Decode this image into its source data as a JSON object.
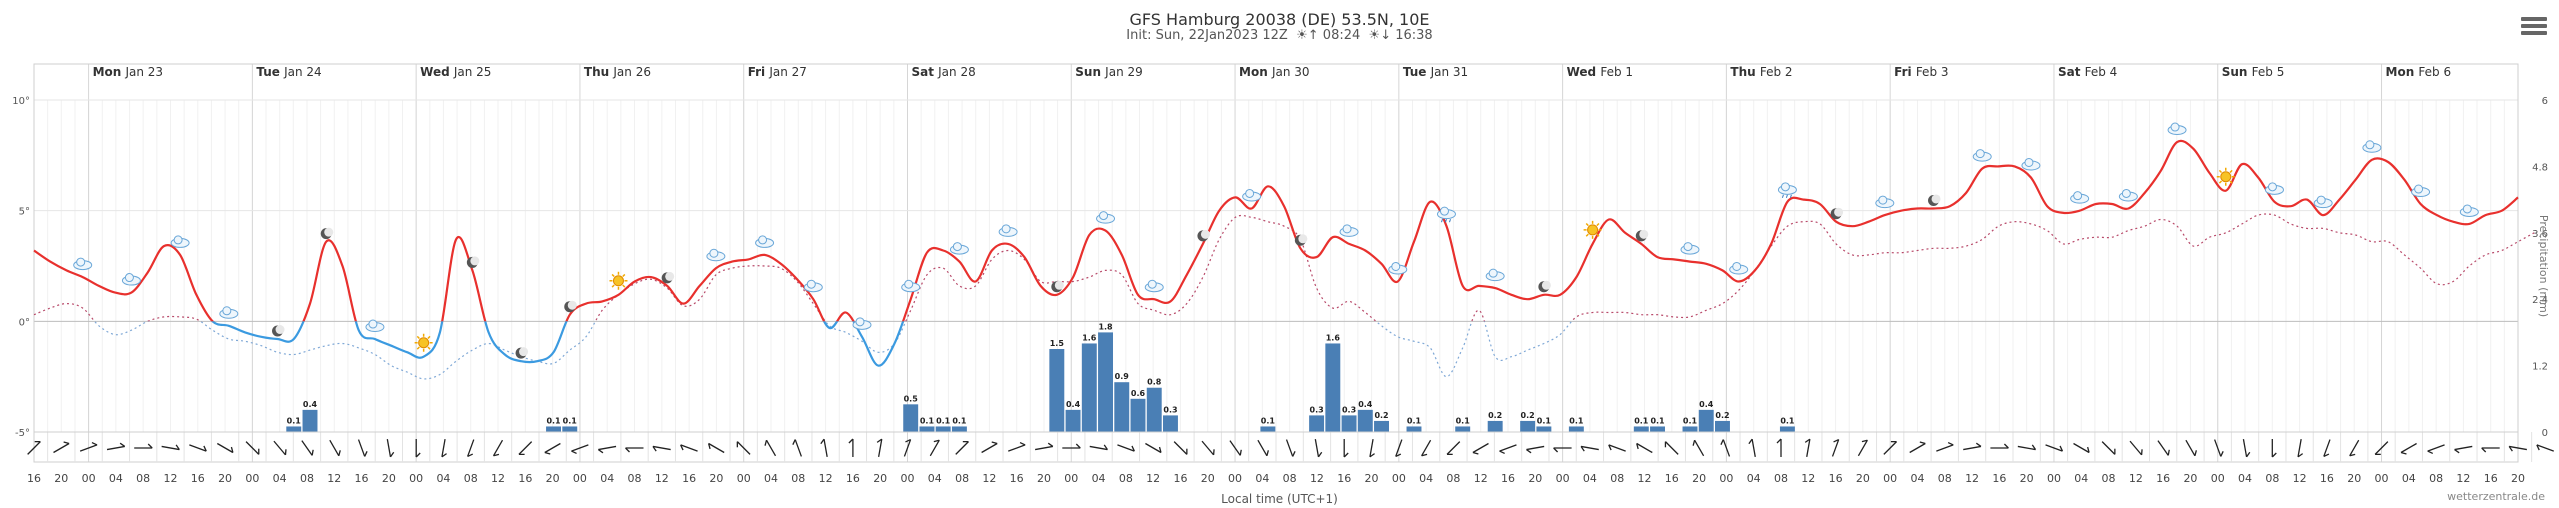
{
  "title": "GFS Hamburg 20038 (DE) 53.5N, 10E",
  "subtitle": "Init: Sun, 22Jan2023 12Z",
  "sunrise": "08:24",
  "sunset": "16:38",
  "credit": "wetterzentrale.de",
  "x_axis_label": "Local time (UTC+1)",
  "y2_axis_label": "Precipitation (mm)",
  "colors": {
    "temp": "#e8302d",
    "temp_cold": "#3b9ae0",
    "dewpoint": "#b84a6a",
    "precip": "#4a7fb5",
    "grid": "#e6e6e6"
  },
  "chart_data": {
    "type": "line",
    "y_left": {
      "min": -5,
      "max": 10,
      "ticks": [
        -5,
        0,
        5,
        10
      ],
      "tick_labels": [
        "-5°",
        "0°",
        "5°",
        "10°"
      ]
    },
    "y_right": {
      "min": 0,
      "max": 6,
      "ticks": [
        0,
        1.2,
        2.4,
        3.6,
        4.8,
        6
      ],
      "tick_labels": [
        "0",
        "1.2",
        "2.4",
        "3.6",
        "4.8",
        "6"
      ]
    },
    "x_start_hour": 16,
    "x_step_hours": 4,
    "day_labels": [
      {
        "dow": "Mon",
        "date": "Jan 23"
      },
      {
        "dow": "Tue",
        "date": "Jan 24"
      },
      {
        "dow": "Wed",
        "date": "Jan 25"
      },
      {
        "dow": "Thu",
        "date": "Jan 26"
      },
      {
        "dow": "Fri",
        "date": "Jan 27"
      },
      {
        "dow": "Sat",
        "date": "Jan 28"
      },
      {
        "dow": "Sun",
        "date": "Jan 29"
      },
      {
        "dow": "Mon",
        "date": "Jan 30"
      },
      {
        "dow": "Tue",
        "date": "Jan 31"
      },
      {
        "dow": "Wed",
        "date": "Feb 1"
      },
      {
        "dow": "Thu",
        "date": "Feb 2"
      },
      {
        "dow": "Fri",
        "date": "Feb 3"
      },
      {
        "dow": "Sat",
        "date": "Feb 4"
      },
      {
        "dow": "Sun",
        "date": "Feb 5"
      },
      {
        "dow": "Mon",
        "date": "Feb 6"
      }
    ],
    "hour_labels": [
      "16",
      "20",
      "00",
      "04",
      "08",
      "12",
      "16",
      "20",
      "00",
      "04",
      "08",
      "12",
      "16",
      "20",
      "00",
      "04",
      "08",
      "12",
      "16",
      "20",
      "00",
      "04",
      "08",
      "12",
      "16",
      "20",
      "00",
      "04",
      "08",
      "12",
      "16",
      "20",
      "00",
      "04",
      "08",
      "12",
      "16",
      "20",
      "00",
      "04",
      "08",
      "12",
      "16",
      "20",
      "00",
      "04",
      "08",
      "12",
      "16",
      "20",
      "00",
      "04",
      "08",
      "12",
      "16",
      "20",
      "00",
      "04",
      "08",
      "12",
      "16",
      "20",
      "00",
      "04",
      "08",
      "12",
      "16",
      "20",
      "00",
      "04",
      "08",
      "12",
      "16",
      "20",
      "00",
      "04",
      "08",
      "12",
      "16",
      "20",
      "00",
      "04",
      "08",
      "12",
      "16",
      "20",
      "00",
      "04",
      "08",
      "12",
      "16",
      "20"
    ],
    "series": [
      {
        "name": "Temperature",
        "values": [
          3.2,
          2.7,
          2.3,
          2.0,
          1.6,
          1.3,
          1.3,
          2.2,
          3.4,
          3.0,
          1.2,
          0.0,
          -0.2,
          -0.5,
          -0.7,
          -0.8,
          -0.8,
          0.8,
          3.6,
          2.5,
          -0.4,
          -0.8,
          -1.1,
          -1.4,
          -1.6,
          -0.5,
          3.7,
          2.3,
          -0.5,
          -1.5,
          -1.8,
          -1.8,
          -1.4,
          0.3,
          0.8,
          0.9,
          1.2,
          1.8,
          2.0,
          1.6,
          0.8,
          1.6,
          2.4,
          2.7,
          2.8,
          3.0,
          2.6,
          1.9,
          1.0,
          -0.3,
          0.4,
          -0.7,
          -2.0,
          -1.0,
          1.0,
          3.1,
          3.2,
          2.7,
          1.8,
          3.2,
          3.5,
          2.9,
          1.6,
          1.2,
          2.0,
          3.9,
          4.1,
          3.0,
          1.2,
          1.0,
          0.9,
          2.1,
          3.5,
          5.0,
          5.6,
          5.1,
          6.1,
          5.2,
          3.3,
          2.9,
          3.8,
          3.5,
          3.2,
          2.6,
          1.8,
          3.6,
          5.4,
          4.3,
          1.6,
          1.6,
          1.5,
          1.2,
          1.0,
          1.2,
          1.2,
          2.0,
          3.5,
          4.6,
          4.0,
          3.5,
          2.9,
          2.8,
          2.7,
          2.6,
          2.3,
          1.8,
          2.3,
          3.5,
          5.4,
          5.5,
          5.3,
          4.5,
          4.3,
          4.5,
          4.8,
          5.0,
          5.1,
          5.1,
          5.2,
          5.8,
          6.9,
          7.0,
          7.0,
          6.5,
          5.2,
          4.9,
          5.0,
          5.3,
          5.3,
          5.1,
          5.8,
          6.8,
          8.1,
          7.8,
          6.7,
          5.9,
          7.1,
          6.5,
          5.4,
          5.2,
          5.5,
          4.8,
          5.5,
          6.4,
          7.3,
          7.2,
          6.4,
          5.3,
          4.8,
          4.5,
          4.4,
          4.8,
          5.0,
          5.6
        ],
        "ybasis": "temp"
      },
      {
        "name": "Dew point",
        "values": [
          0.3,
          0.6,
          0.8,
          0.6,
          -0.2,
          -0.6,
          -0.4,
          0.0,
          0.2,
          0.2,
          0.1,
          -0.4,
          -0.8,
          -0.9,
          -1.1,
          -1.4,
          -1.5,
          -1.3,
          -1.1,
          -1.0,
          -1.2,
          -1.5,
          -2.0,
          -2.3,
          -2.6,
          -2.4,
          -1.8,
          -1.3,
          -1.0,
          -1.3,
          -1.6,
          -1.8,
          -1.9,
          -1.3,
          -0.7,
          0.5,
          1.2,
          1.7,
          1.9,
          1.5,
          0.7,
          1.0,
          2.1,
          2.4,
          2.5,
          2.5,
          2.4,
          1.8,
          0.8,
          -0.2,
          -0.5,
          -0.9,
          -1.4,
          -1.0,
          0.5,
          2.1,
          2.4,
          1.6,
          1.6,
          2.8,
          3.2,
          2.8,
          1.8,
          1.8,
          1.8,
          2.0,
          2.3,
          2.1,
          0.8,
          0.5,
          0.3,
          0.8,
          2.0,
          3.7,
          4.7,
          4.7,
          4.5,
          4.3,
          3.7,
          1.5,
          0.6,
          0.9,
          0.4,
          -0.2,
          -0.7,
          -0.9,
          -1.2,
          -2.5,
          -1.2,
          0.5,
          -1.6,
          -1.6,
          -1.3,
          -1.0,
          -0.6,
          0.2,
          0.4,
          0.4,
          0.4,
          0.3,
          0.3,
          0.2,
          0.2,
          0.5,
          0.8,
          1.4,
          2.3,
          3.4,
          4.3,
          4.5,
          4.4,
          3.5,
          3.0,
          3.0,
          3.1,
          3.1,
          3.2,
          3.3,
          3.3,
          3.4,
          3.7,
          4.3,
          4.5,
          4.4,
          4.1,
          3.5,
          3.7,
          3.8,
          3.8,
          4.1,
          4.3,
          4.6,
          4.3,
          3.4,
          3.8,
          4.0,
          4.4,
          4.8,
          4.8,
          4.4,
          4.2,
          4.2,
          4.0,
          3.9,
          3.6,
          3.6,
          3.0,
          2.4,
          1.7,
          1.8,
          2.5,
          3.0,
          3.2,
          3.6,
          4.0
        ],
        "ybasis": "temp"
      },
      {
        "name": "Precipitation",
        "type": "bar",
        "bars": [
          {
            "i": 16,
            "v": 0.1
          },
          {
            "i": 17,
            "v": 0.4
          },
          {
            "i": 32,
            "v": 0.1
          },
          {
            "i": 33,
            "v": 0.1
          },
          {
            "i": 54,
            "v": 0.5
          },
          {
            "i": 55,
            "v": 0.1
          },
          {
            "i": 56,
            "v": 0.1
          },
          {
            "i": 57,
            "v": 0.1
          },
          {
            "i": 63,
            "v": 1.5
          },
          {
            "i": 64,
            "v": 0.4
          },
          {
            "i": 65,
            "v": 1.6
          },
          {
            "i": 66,
            "v": 1.8
          },
          {
            "i": 67,
            "v": 0.9
          },
          {
            "i": 68,
            "v": 0.6
          },
          {
            "i": 69,
            "v": 0.8
          },
          {
            "i": 70,
            "v": 0.3
          },
          {
            "i": 76,
            "v": 0.1
          },
          {
            "i": 79,
            "v": 0.3
          },
          {
            "i": 80,
            "v": 1.6
          },
          {
            "i": 81,
            "v": 0.3
          },
          {
            "i": 82,
            "v": 0.4
          },
          {
            "i": 83,
            "v": 0.2
          },
          {
            "i": 85,
            "v": 0.1
          },
          {
            "i": 88,
            "v": 0.1
          },
          {
            "i": 90,
            "v": 0.2
          },
          {
            "i": 92,
            "v": 0.2
          },
          {
            "i": 93,
            "v": 0.1
          },
          {
            "i": 95,
            "v": 0.1
          },
          {
            "i": 99,
            "v": 0.1
          },
          {
            "i": 100,
            "v": 0.1
          },
          {
            "i": 102,
            "v": 0.1
          },
          {
            "i": 103,
            "v": 0.4
          },
          {
            "i": 104,
            "v": 0.2
          },
          {
            "i": 108,
            "v": 0.1
          }
        ],
        "ybasis": "precip"
      }
    ],
    "weather_icons": [
      {
        "i": 3,
        "kind": "cloud"
      },
      {
        "i": 6,
        "kind": "cloud"
      },
      {
        "i": 9,
        "kind": "cloud"
      },
      {
        "i": 12,
        "kind": "cloud"
      },
      {
        "i": 15,
        "kind": "moon"
      },
      {
        "i": 18,
        "kind": "moon"
      },
      {
        "i": 21,
        "kind": "cloud"
      },
      {
        "i": 24,
        "kind": "sun"
      },
      {
        "i": 27,
        "kind": "moon"
      },
      {
        "i": 30,
        "kind": "moon"
      },
      {
        "i": 33,
        "kind": "moon"
      },
      {
        "i": 36,
        "kind": "sun"
      },
      {
        "i": 39,
        "kind": "moon"
      },
      {
        "i": 42,
        "kind": "cloud"
      },
      {
        "i": 45,
        "kind": "cloud"
      },
      {
        "i": 48,
        "kind": "cloud"
      },
      {
        "i": 51,
        "kind": "cloud"
      },
      {
        "i": 54,
        "kind": "cloud"
      },
      {
        "i": 57,
        "kind": "cloud"
      },
      {
        "i": 60,
        "kind": "cloud"
      },
      {
        "i": 63,
        "kind": "moon"
      },
      {
        "i": 66,
        "kind": "cloud"
      },
      {
        "i": 69,
        "kind": "cloud"
      },
      {
        "i": 72,
        "kind": "moon"
      },
      {
        "i": 75,
        "kind": "cloud"
      },
      {
        "i": 78,
        "kind": "moon"
      },
      {
        "i": 81,
        "kind": "cloud"
      },
      {
        "i": 84,
        "kind": "cloud"
      },
      {
        "i": 87,
        "kind": "rain"
      },
      {
        "i": 90,
        "kind": "cloud"
      },
      {
        "i": 93,
        "kind": "moon"
      },
      {
        "i": 96,
        "kind": "sun"
      },
      {
        "i": 99,
        "kind": "moon"
      },
      {
        "i": 102,
        "kind": "cloud"
      },
      {
        "i": 105,
        "kind": "cloud"
      },
      {
        "i": 108,
        "kind": "rain"
      },
      {
        "i": 111,
        "kind": "moon"
      },
      {
        "i": 114,
        "kind": "cloud"
      },
      {
        "i": 117,
        "kind": "moon"
      },
      {
        "i": 120,
        "kind": "cloud"
      },
      {
        "i": 123,
        "kind": "cloud"
      },
      {
        "i": 126,
        "kind": "cloud"
      },
      {
        "i": 129,
        "kind": "cloud"
      },
      {
        "i": 132,
        "kind": "cloud"
      },
      {
        "i": 135,
        "kind": "sun"
      },
      {
        "i": 138,
        "kind": "cloud"
      },
      {
        "i": 141,
        "kind": "cloud"
      },
      {
        "i": 144,
        "kind": "cloud"
      },
      {
        "i": 147,
        "kind": "cloud"
      },
      {
        "i": 150,
        "kind": "cloud"
      }
    ],
    "wind_directions": [
      225,
      240,
      250,
      260,
      270,
      280,
      290,
      300,
      315,
      320,
      325,
      330,
      340,
      350,
      0,
      10,
      20,
      30,
      45,
      60,
      70,
      80,
      90,
      100,
      110,
      120,
      135,
      150,
      160,
      170,
      180,
      190,
      200,
      210,
      225,
      240,
      250,
      260,
      270,
      280,
      290,
      300,
      315,
      320,
      325,
      330,
      340,
      350,
      0,
      10,
      20,
      30,
      45,
      60,
      70,
      80,
      90,
      100,
      110,
      120,
      135,
      150,
      160,
      170,
      180,
      190,
      200,
      210,
      225,
      240,
      250,
      260,
      270,
      280,
      290,
      300,
      315,
      320,
      325,
      330,
      340,
      350,
      0,
      10,
      20,
      30,
      45,
      60,
      70,
      80,
      90,
      100,
      110
    ],
    "grid": true,
    "legend": "none"
  }
}
